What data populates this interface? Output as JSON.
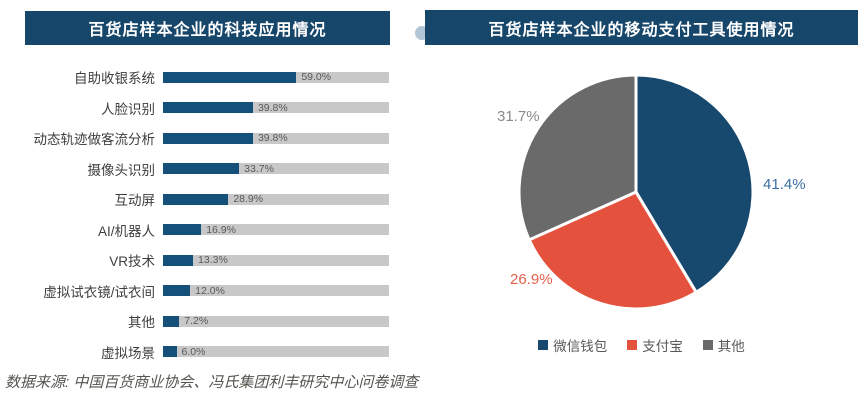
{
  "source_note": "数据来源: 中国百货商业协会、冯氏集团利丰研究中心问卷调查",
  "colors": {
    "banner_bg": "#17466b",
    "banner_text": "#ffffff",
    "bar_fill": "#14507a",
    "bar_track": "#c8c8c8",
    "wechat_blue": "#17486e",
    "alipay_red": "#e4513c",
    "other_gray": "#6a6a6a",
    "value_label_gray": "#595959"
  },
  "chart_data": [
    {
      "type": "bar",
      "orientation": "horizontal",
      "title": "百货店样本企业的科技应用情况",
      "categories": [
        "自助收银系统",
        "人脸识别",
        "动态轨迹做客流分析",
        "摄像头识别",
        "互动屏",
        "AI/机器人",
        "VR技术",
        "虚拟试衣镜/试衣间",
        "其他",
        "虚拟场景"
      ],
      "values": [
        59.0,
        39.8,
        39.8,
        33.7,
        28.9,
        16.9,
        13.3,
        12.0,
        7.2,
        6.0
      ],
      "value_labels": [
        "59.0%",
        "39.8%",
        "39.8%",
        "33.7%",
        "28.9%",
        "16.9%",
        "13.3%",
        "12.0%",
        "7.2%",
        "6.0%"
      ],
      "xlim": [
        0,
        100
      ],
      "grid": false,
      "track_represents": "100%"
    },
    {
      "type": "pie",
      "title": "百货店样本企业的移动支付工具使用情况",
      "categories": [
        "微信钱包",
        "支付宝",
        "其他"
      ],
      "slice_names": [
        "wechat",
        "alipay",
        "other"
      ],
      "values": [
        41.4,
        26.9,
        31.7
      ],
      "value_labels": [
        "41.4%",
        "26.9%",
        "31.7%"
      ],
      "colors": [
        "#17486e",
        "#e4513c",
        "#6a6a6a"
      ],
      "label_colors": [
        "#3c6fa3",
        "#e4604c",
        "#8a8a8a"
      ],
      "start_angle_deg": 0,
      "direction": "clockwise",
      "legend_position": "bottom"
    }
  ]
}
